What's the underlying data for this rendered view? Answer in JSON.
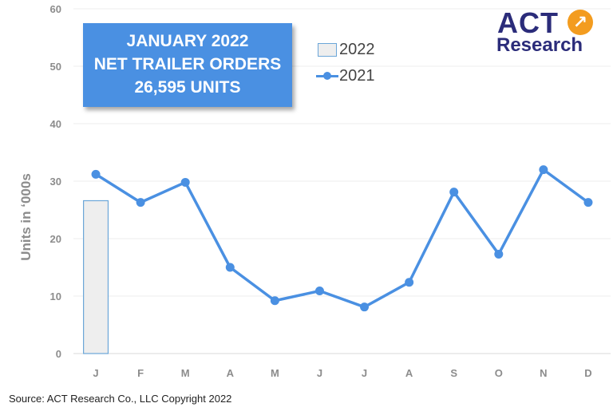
{
  "callout": {
    "line1": "JANUARY 2022",
    "line2": "NET TRAILER ORDERS",
    "line3": "26,595 UNITS"
  },
  "logo": {
    "act": "ACT",
    "research": "Research",
    "icon": "arrow-icon"
  },
  "source": "Source: ACT Research Co., LLC  Copyright 2022",
  "colors": {
    "line": "#4a90e2",
    "bar_fill": "#eeeeee",
    "bar_border": "#6ba6d8",
    "callout_bg": "#4a90e2",
    "logo_navy": "#2b2c7a",
    "logo_orange": "#f39c1f"
  },
  "chart_data": {
    "type": "bar+line",
    "categories": [
      "J",
      "F",
      "M",
      "A",
      "M",
      "J",
      "J",
      "A",
      "S",
      "O",
      "N",
      "D"
    ],
    "ylabel": "Units in ‘000s",
    "ylim": [
      0,
      60
    ],
    "yticks": [
      0,
      10,
      20,
      30,
      40,
      50,
      60
    ],
    "grid": true,
    "legend_position": "top-center",
    "series": [
      {
        "name": "2022",
        "type": "bar",
        "values": [
          26.6,
          null,
          null,
          null,
          null,
          null,
          null,
          null,
          null,
          null,
          null,
          null
        ]
      },
      {
        "name": "2021",
        "type": "line",
        "values": [
          31.2,
          26.3,
          29.8,
          15.0,
          9.2,
          10.9,
          8.1,
          12.4,
          28.1,
          17.3,
          32.0,
          26.3
        ]
      }
    ]
  }
}
